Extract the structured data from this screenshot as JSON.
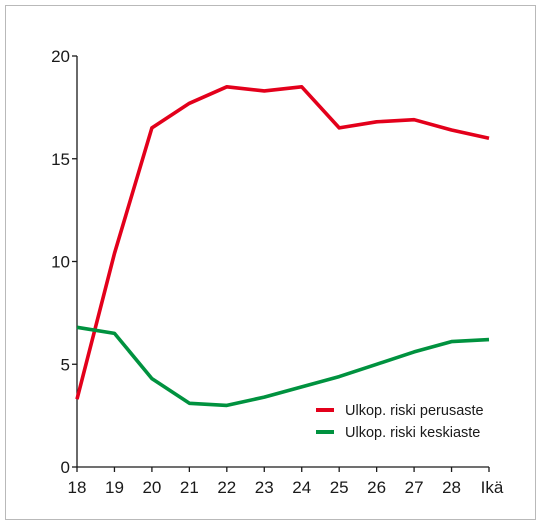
{
  "chart_data": {
    "type": "line",
    "x": [
      18,
      19,
      20,
      21,
      22,
      23,
      24,
      25,
      26,
      27,
      28,
      29
    ],
    "x_tick_labels": [
      "18",
      "19",
      "20",
      "21",
      "22",
      "23",
      "24",
      "25",
      "26",
      "27",
      "28"
    ],
    "x_unit_label": "Ikä",
    "y_ticks": [
      0,
      5,
      10,
      15,
      20
    ],
    "y_tick_labels": [
      "0",
      "5",
      "10",
      "15",
      "20"
    ],
    "xlim": [
      18,
      29
    ],
    "ylim": [
      0,
      20
    ],
    "grid": false,
    "legend_position": "bottom-right",
    "series": [
      {
        "name": "Ulkop. riski perusaste",
        "color": "#e3001b",
        "values": [
          3.3,
          10.4,
          16.5,
          17.7,
          18.5,
          18.3,
          18.5,
          16.5,
          16.8,
          16.9,
          16.4,
          16.0
        ]
      },
      {
        "name": "Ulkop. riski keskiaste",
        "color": "#00923f",
        "values": [
          6.8,
          6.5,
          4.3,
          3.1,
          3.0,
          3.4,
          3.9,
          4.4,
          5.0,
          5.6,
          6.1,
          6.2
        ]
      }
    ]
  }
}
